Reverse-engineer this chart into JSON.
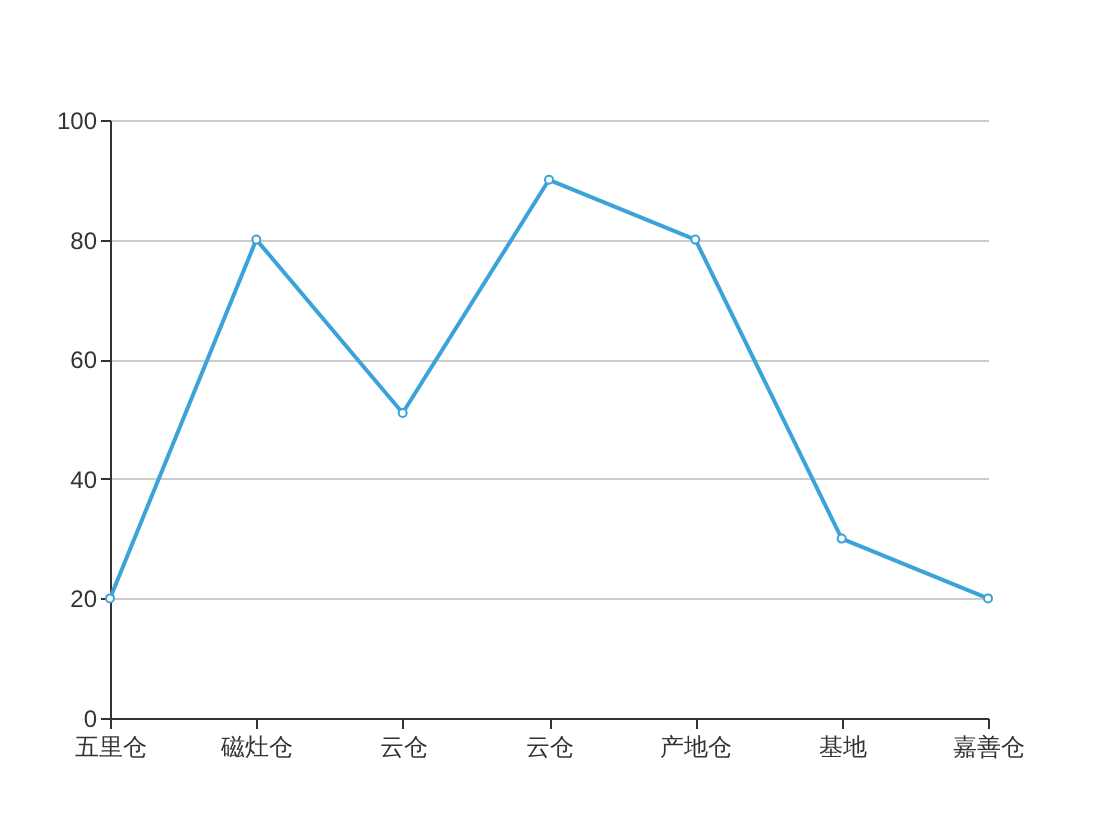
{
  "chart_data": {
    "type": "line",
    "categories": [
      "五里仓",
      "磁灶仓",
      "云仓",
      "云仓",
      "产地仓",
      "基地",
      "嘉善仓"
    ],
    "series": [
      {
        "color": "#3ba3d9",
        "values": [
          20,
          80,
          51,
          90,
          80,
          30,
          20
        ]
      }
    ],
    "ylim": [
      0,
      100
    ],
    "yticks": [
      0,
      20,
      40,
      60,
      80,
      100
    ],
    "grid": "y",
    "marker": "circle",
    "legend": false
  }
}
